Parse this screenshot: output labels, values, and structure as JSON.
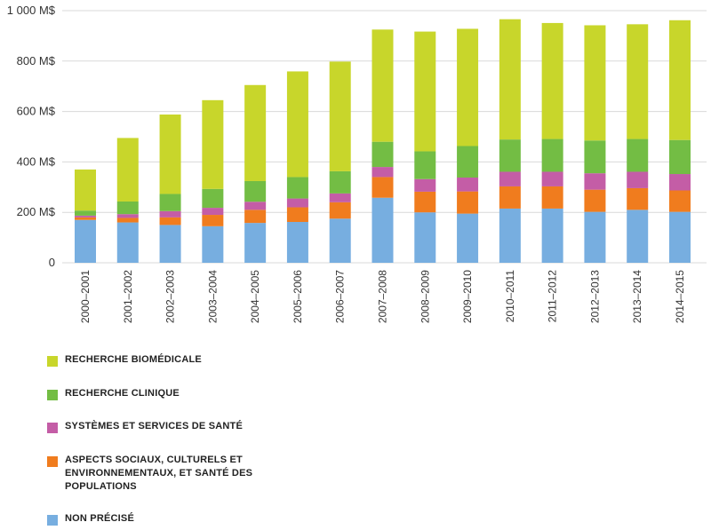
{
  "chart_data": {
    "type": "bar",
    "stacked": true,
    "categories": [
      "2000–2001",
      "2001–2002",
      "2002–2003",
      "2003–2004",
      "2004–2005",
      "2005–2006",
      "2006–2007",
      "2007–2008",
      "2008–2009",
      "2009–2010",
      "2010–2011",
      "2011–2012",
      "2012–2013",
      "2013–2014",
      "2014–2015"
    ],
    "y_tick_labels": [
      "0",
      "200 M$",
      "400 M$",
      "600 M$",
      "800 M$",
      "1 000 M$"
    ],
    "y_ticks": [
      0,
      200,
      400,
      600,
      800,
      1000
    ],
    "ylim": [
      0,
      1000
    ],
    "grid": true,
    "legend_position": "bottom",
    "series": [
      {
        "name": "NON PRÉCISÉ",
        "color": "#77aee0",
        "values": [
          170,
          160,
          150,
          145,
          158,
          162,
          175,
          258,
          200,
          195,
          215,
          215,
          202,
          210,
          202
        ]
      },
      {
        "name": "ASPECTS SOCIAUX, CULTURELS ET ENVIRONNEMENTAUX, ET SANTÉ DES POPULATIONS",
        "color": "#f07c1e",
        "values": [
          10,
          18,
          30,
          45,
          52,
          58,
          65,
          82,
          82,
          88,
          88,
          88,
          88,
          86,
          85
        ]
      },
      {
        "name": "SYSTÈMES ET SERVICES DE SANTÉ",
        "color": "#c45da6",
        "values": [
          7,
          15,
          25,
          28,
          32,
          35,
          35,
          40,
          50,
          55,
          58,
          58,
          65,
          65,
          65
        ]
      },
      {
        "name": "RECHERCHE CLINIQUE",
        "color": "#73bd44",
        "values": [
          20,
          50,
          68,
          75,
          82,
          85,
          88,
          100,
          110,
          125,
          128,
          130,
          130,
          130,
          135
        ]
      },
      {
        "name": "RECHERCHE BIOMÉDICALE",
        "color": "#c8d62b",
        "values": [
          163,
          252,
          315,
          352,
          381,
          419,
          435,
          445,
          475,
          465,
          477,
          460,
          457,
          455,
          475
        ]
      }
    ]
  },
  "legend": {
    "items": [
      {
        "label": "RECHERCHE BIOMÉDICALE",
        "color": "#c8d62b"
      },
      {
        "label": "RECHERCHE CLINIQUE",
        "color": "#73bd44"
      },
      {
        "label": "SYSTÈMES ET SERVICES DE SANTÉ",
        "color": "#c45da6"
      },
      {
        "label": "ASPECTS SOCIAUX, CULTURELS ET ENVIRONNEMENTAUX, ET SANTÉ DES POPULATIONS",
        "color": "#f07c1e"
      },
      {
        "label": "NON PRÉCISÉ",
        "color": "#77aee0"
      }
    ]
  }
}
